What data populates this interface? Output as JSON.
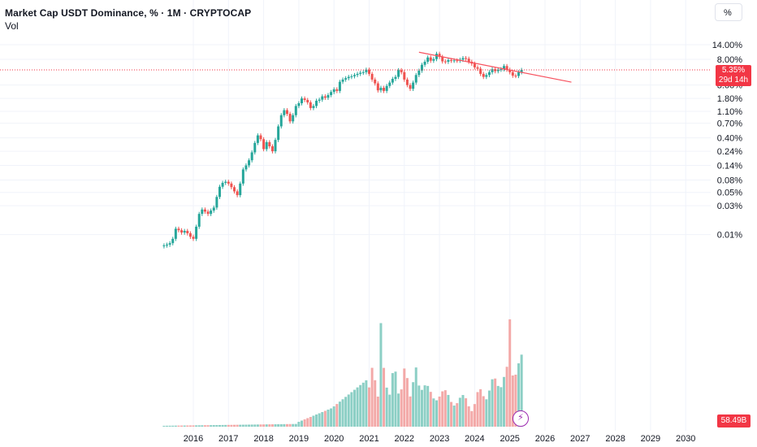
{
  "legend": {
    "title": "Market Cap USDT Dominance, % · 1M · CRYPTOCAP",
    "vol_label": "Vol"
  },
  "scale_button": "%",
  "last_price": {
    "value": "5.35%",
    "countdown": "29d 14h"
  },
  "volume_last": "58.49B",
  "colors": {
    "up": "#26a69a",
    "down": "#ef5350",
    "vol_up": "#8ccfc5",
    "vol_down": "#f3a9a8",
    "trendline": "#f7525f",
    "price_line": "#f23645",
    "badge": "#f23645",
    "flash_icon": "#9c27b0"
  },
  "icons": [
    "flash-icon"
  ],
  "chart_data": {
    "type": "candlestick",
    "interval": "1M",
    "scale": "log",
    "y_ticks": [
      "14.00%",
      "8.00%",
      "5.35%",
      "3.00%",
      "1.80%",
      "1.10%",
      "0.70%",
      "0.40%",
      "0.24%",
      "0.14%",
      "0.08%",
      "0.05%",
      "0.03%",
      "0.01%"
    ],
    "x_ticks": [
      "2016",
      "2017",
      "2018",
      "2019",
      "2020",
      "2021",
      "2022",
      "2023",
      "2024",
      "2025",
      "2026",
      "2027",
      "2028",
      "2029",
      "2030"
    ],
    "last_value": 5.35,
    "trendline": {
      "from": [
        "2022-06",
        10.5
      ],
      "to": [
        "2026-10",
        3.35
      ]
    },
    "series": [
      {
        "date": "2015-03",
        "c": 0.0066
      },
      {
        "date": "2015-04",
        "c": 0.0068
      },
      {
        "date": "2015-05",
        "c": 0.0072
      },
      {
        "date": "2015-06",
        "c": 0.0085
      },
      {
        "date": "2015-07",
        "c": 0.0125
      },
      {
        "date": "2015-08",
        "c": 0.0118
      },
      {
        "date": "2015-09",
        "c": 0.0108
      },
      {
        "date": "2015-10",
        "c": 0.0115
      },
      {
        "date": "2015-11",
        "c": 0.0105
      },
      {
        "date": "2015-12",
        "c": 0.0092
      },
      {
        "date": "2016-01",
        "c": 0.0085
      },
      {
        "date": "2016-02",
        "c": 0.0135
      },
      {
        "date": "2016-03",
        "c": 0.022
      },
      {
        "date": "2016-04",
        "c": 0.026
      },
      {
        "date": "2016-05",
        "c": 0.024
      },
      {
        "date": "2016-06",
        "c": 0.022
      },
      {
        "date": "2016-07",
        "c": 0.025
      },
      {
        "date": "2016-08",
        "c": 0.028
      },
      {
        "date": "2016-09",
        "c": 0.042
      },
      {
        "date": "2016-10",
        "c": 0.062
      },
      {
        "date": "2016-11",
        "c": 0.072
      },
      {
        "date": "2016-12",
        "c": 0.075
      },
      {
        "date": "2017-01",
        "c": 0.07
      },
      {
        "date": "2017-02",
        "c": 0.061
      },
      {
        "date": "2017-03",
        "c": 0.052
      },
      {
        "date": "2017-04",
        "c": 0.045
      },
      {
        "date": "2017-05",
        "c": 0.07
      },
      {
        "date": "2017-06",
        "c": 0.12
      },
      {
        "date": "2017-07",
        "c": 0.14
      },
      {
        "date": "2017-08",
        "c": 0.17
      },
      {
        "date": "2017-09",
        "c": 0.23
      },
      {
        "date": "2017-10",
        "c": 0.33
      },
      {
        "date": "2017-11",
        "c": 0.44
      },
      {
        "date": "2017-12",
        "c": 0.38
      },
      {
        "date": "2018-01",
        "c": 0.26
      },
      {
        "date": "2018-02",
        "c": 0.34
      },
      {
        "date": "2018-03",
        "c": 0.29
      },
      {
        "date": "2018-04",
        "c": 0.24
      },
      {
        "date": "2018-05",
        "c": 0.37
      },
      {
        "date": "2018-06",
        "c": 0.62
      },
      {
        "date": "2018-07",
        "c": 0.95
      },
      {
        "date": "2018-08",
        "c": 1.15
      },
      {
        "date": "2018-09",
        "c": 1.0
      },
      {
        "date": "2018-10",
        "c": 0.75
      },
      {
        "date": "2018-11",
        "c": 0.95
      },
      {
        "date": "2018-12",
        "c": 1.35
      },
      {
        "date": "2019-01",
        "c": 1.5
      },
      {
        "date": "2019-02",
        "c": 1.8
      },
      {
        "date": "2019-03",
        "c": 1.7
      },
      {
        "date": "2019-04",
        "c": 1.55
      },
      {
        "date": "2019-05",
        "c": 1.25
      },
      {
        "date": "2019-06",
        "c": 1.35
      },
      {
        "date": "2019-07",
        "c": 1.65
      },
      {
        "date": "2019-08",
        "c": 1.72
      },
      {
        "date": "2019-09",
        "c": 1.95
      },
      {
        "date": "2019-10",
        "c": 1.85
      },
      {
        "date": "2019-11",
        "c": 2.05
      },
      {
        "date": "2019-12",
        "c": 2.3
      },
      {
        "date": "2020-01",
        "c": 2.55
      },
      {
        "date": "2020-02",
        "c": 2.4
      },
      {
        "date": "2020-03",
        "c": 3.4
      },
      {
        "date": "2020-04",
        "c": 3.7
      },
      {
        "date": "2020-05",
        "c": 3.9
      },
      {
        "date": "2020-06",
        "c": 4.1
      },
      {
        "date": "2020-07",
        "c": 4.2
      },
      {
        "date": "2020-08",
        "c": 4.4
      },
      {
        "date": "2020-09",
        "c": 4.6
      },
      {
        "date": "2020-10",
        "c": 4.8
      },
      {
        "date": "2020-11",
        "c": 4.9
      },
      {
        "date": "2020-12",
        "c": 5.4
      },
      {
        "date": "2021-01",
        "c": 4.6
      },
      {
        "date": "2021-02",
        "c": 3.7
      },
      {
        "date": "2021-03",
        "c": 3.2
      },
      {
        "date": "2021-04",
        "c": 2.45
      },
      {
        "date": "2021-05",
        "c": 2.7
      },
      {
        "date": "2021-06",
        "c": 2.4
      },
      {
        "date": "2021-07",
        "c": 2.9
      },
      {
        "date": "2021-08",
        "c": 3.3
      },
      {
        "date": "2021-09",
        "c": 3.8
      },
      {
        "date": "2021-10",
        "c": 4.1
      },
      {
        "date": "2021-11",
        "c": 5.3
      },
      {
        "date": "2021-12",
        "c": 4.9
      },
      {
        "date": "2022-01",
        "c": 3.7
      },
      {
        "date": "2022-02",
        "c": 3.0
      },
      {
        "date": "2022-03",
        "c": 2.6
      },
      {
        "date": "2022-04",
        "c": 3.3
      },
      {
        "date": "2022-05",
        "c": 4.4
      },
      {
        "date": "2022-06",
        "c": 5.2
      },
      {
        "date": "2022-07",
        "c": 6.5
      },
      {
        "date": "2022-08",
        "c": 7.3
      },
      {
        "date": "2022-09",
        "c": 8.6
      },
      {
        "date": "2022-10",
        "c": 7.6
      },
      {
        "date": "2022-11",
        "c": 8.1
      },
      {
        "date": "2022-12",
        "c": 9.9
      },
      {
        "date": "2023-01",
        "c": 8.8
      },
      {
        "date": "2023-02",
        "c": 7.4
      },
      {
        "date": "2023-03",
        "c": 7.3
      },
      {
        "date": "2023-04",
        "c": 7.8
      },
      {
        "date": "2023-05",
        "c": 7.6
      },
      {
        "date": "2023-06",
        "c": 7.7
      },
      {
        "date": "2023-07",
        "c": 7.6
      },
      {
        "date": "2023-08",
        "c": 7.9
      },
      {
        "date": "2023-09",
        "c": 8.4
      },
      {
        "date": "2023-10",
        "c": 8.2
      },
      {
        "date": "2023-11",
        "c": 7.3
      },
      {
        "date": "2023-12",
        "c": 6.8
      },
      {
        "date": "2024-01",
        "c": 5.9
      },
      {
        "date": "2024-02",
        "c": 5.6
      },
      {
        "date": "2024-03",
        "c": 4.6
      },
      {
        "date": "2024-04",
        "c": 4.1
      },
      {
        "date": "2024-05",
        "c": 4.4
      },
      {
        "date": "2024-06",
        "c": 4.9
      },
      {
        "date": "2024-07",
        "c": 5.5
      },
      {
        "date": "2024-08",
        "c": 5.1
      },
      {
        "date": "2024-09",
        "c": 5.4
      },
      {
        "date": "2024-10",
        "c": 5.5
      },
      {
        "date": "2024-11",
        "c": 6.2
      },
      {
        "date": "2024-12",
        "c": 5.4
      },
      {
        "date": "2025-01",
        "c": 4.9
      },
      {
        "date": "2025-02",
        "c": 4.3
      },
      {
        "date": "2025-03",
        "c": 4.25
      },
      {
        "date": "2025-04",
        "c": 4.9
      },
      {
        "date": "2025-05",
        "c": 5.35
      }
    ]
  }
}
